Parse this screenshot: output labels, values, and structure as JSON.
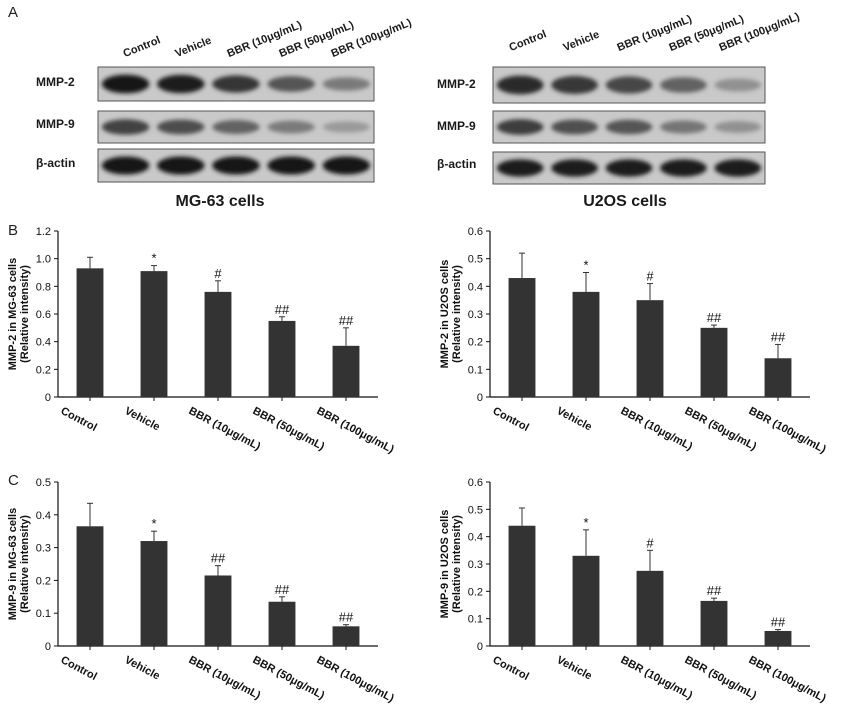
{
  "panels": {
    "a": "A",
    "b": "B",
    "c": "C"
  },
  "blots": [
    {
      "title": "MG-63 cells",
      "lanes": [
        "Control",
        "Vehicle",
        "BBR (10μg/mL)",
        "BBR  (50μg/mL)",
        "BBR (100μg/mL)"
      ],
      "rows": [
        {
          "label": "MMP-2",
          "intensity": [
            0.95,
            0.93,
            0.8,
            0.62,
            0.42
          ]
        },
        {
          "label": "MMP-9",
          "intensity": [
            0.72,
            0.66,
            0.55,
            0.42,
            0.25
          ]
        },
        {
          "label": "β-actin",
          "intensity": [
            0.95,
            0.95,
            0.95,
            0.95,
            0.95
          ]
        }
      ]
    },
    {
      "title": "U2OS cells",
      "lanes": [
        "Control",
        "Vehicle",
        "BBR (10μg/mL)",
        "BBR  (50μg/mL)",
        "BBR (100μg/mL)"
      ],
      "rows": [
        {
          "label": "MMP-2",
          "intensity": [
            0.85,
            0.78,
            0.7,
            0.55,
            0.3
          ]
        },
        {
          "label": "MMP-9",
          "intensity": [
            0.75,
            0.65,
            0.62,
            0.45,
            0.3
          ]
        },
        {
          "label": "β-actin",
          "intensity": [
            0.92,
            0.92,
            0.92,
            0.92,
            0.92
          ]
        }
      ]
    }
  ],
  "chart_data": [
    {
      "type": "bar",
      "ylabel": "MMP-2 in MG-63 cells (Relative intensity)",
      "ylabel_lines": [
        "MMP-2 in MG-63 cells",
        "(Relative intensity)"
      ],
      "categories": [
        "Control",
        "Vehicle",
        "BBR (10μg/mL)",
        "BBR  (50μg/mL)",
        "BBR (100μg/mL)"
      ],
      "values": [
        0.93,
        0.91,
        0.76,
        0.55,
        0.37
      ],
      "errors": [
        0.08,
        0.04,
        0.08,
        0.03,
        0.13
      ],
      "annotations": [
        "",
        "*",
        "#",
        "##",
        "##"
      ],
      "ylim": [
        0,
        1.2
      ],
      "yticks": [
        0,
        0.2,
        0.4,
        0.6,
        0.8,
        1.0,
        1.2
      ],
      "ytick_labels": [
        "0",
        "0.2",
        "0.4",
        "0.6",
        "0.8",
        "1.0",
        "1.2"
      ]
    },
    {
      "type": "bar",
      "ylabel": "MMP-2 in U2OS cells (Relative intensity)",
      "ylabel_lines": [
        "MMP-2 in U2OS cells",
        "(Relative intensity)"
      ],
      "categories": [
        "Control",
        "Vehicle",
        "BBR (10μg/mL)",
        "BBR  (50μg/mL)",
        "BBR (100μg/mL)"
      ],
      "values": [
        0.43,
        0.38,
        0.35,
        0.25,
        0.14
      ],
      "errors": [
        0.09,
        0.07,
        0.06,
        0.01,
        0.05
      ],
      "annotations": [
        "",
        "*",
        "#",
        "##",
        "##"
      ],
      "ylim": [
        0,
        0.6
      ],
      "yticks": [
        0,
        0.1,
        0.2,
        0.3,
        0.4,
        0.5,
        0.6
      ],
      "ytick_labels": [
        "0",
        "0.1",
        "0.2",
        "0.3",
        "0.4",
        "0.5",
        "0.6"
      ]
    },
    {
      "type": "bar",
      "ylabel": "MMP-9 in MG-63 cells (Relative intensity)",
      "ylabel_lines": [
        "MMP-9 in MG-63 cells",
        "(Relative intensity)"
      ],
      "categories": [
        "Control",
        "Vehicle",
        "BBR (10μg/mL)",
        "BBR  (50μg/mL)",
        "BBR (100μg/mL)"
      ],
      "values": [
        0.365,
        0.32,
        0.215,
        0.135,
        0.06
      ],
      "errors": [
        0.07,
        0.03,
        0.03,
        0.015,
        0.005
      ],
      "annotations": [
        "",
        "*",
        "##",
        "##",
        "##"
      ],
      "ylim": [
        0,
        0.5
      ],
      "yticks": [
        0,
        0.1,
        0.2,
        0.3,
        0.4,
        0.5
      ],
      "ytick_labels": [
        "0",
        "0.1",
        "0.2",
        "0.3",
        "0.4",
        "0.5"
      ]
    },
    {
      "type": "bar",
      "ylabel": "MMP-9 in U2OS cells (Relative intensity)",
      "ylabel_lines": [
        "MMP-9 in U2OS cells",
        "(Relative intensity)"
      ],
      "categories": [
        "Control",
        "Vehicle",
        "BBR (10μg/mL)",
        "BBR  (50μg/mL)",
        "BBR (100μg/mL)"
      ],
      "values": [
        0.44,
        0.33,
        0.275,
        0.165,
        0.055
      ],
      "errors": [
        0.065,
        0.095,
        0.075,
        0.01,
        0.005
      ],
      "annotations": [
        "",
        "*",
        "#",
        "##",
        "##"
      ],
      "ylim": [
        0,
        0.6
      ],
      "yticks": [
        0,
        0.1,
        0.2,
        0.3,
        0.4,
        0.5,
        0.6
      ],
      "ytick_labels": [
        "0",
        "0.1",
        "0.2",
        "0.3",
        "0.4",
        "0.5",
        "0.6"
      ]
    }
  ]
}
